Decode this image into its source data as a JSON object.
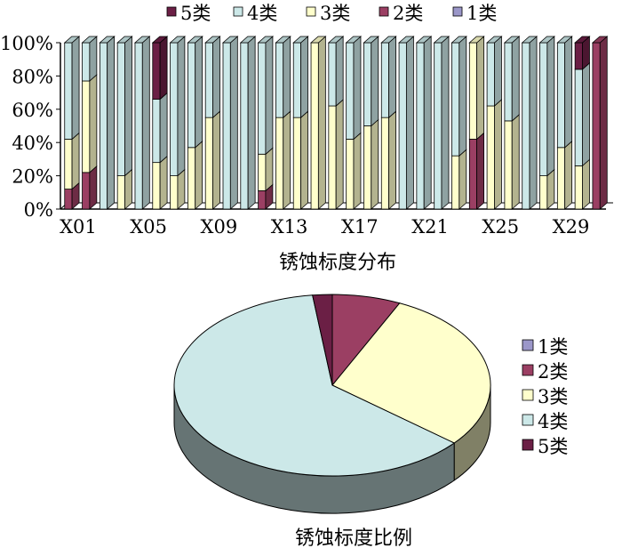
{
  "chart_data": [
    {
      "type": "bar",
      "subtype": "100% stacked 3D column",
      "xlabel": "锈蚀标度分布",
      "ylabel": "",
      "ylim": [
        0,
        100
      ],
      "y_ticks": [
        "0%",
        "20%",
        "40%",
        "60%",
        "80%",
        "100%"
      ],
      "legend_position": "top",
      "legend_order": [
        "5类",
        "4类",
        "3类",
        "2类",
        "1类"
      ],
      "categories": [
        "X01",
        "X02",
        "X03",
        "X04",
        "X05",
        "X06",
        "X07",
        "X08",
        "X09",
        "X10",
        "X11",
        "X12",
        "X13",
        "X14",
        "X15",
        "X16",
        "X17",
        "X18",
        "X19",
        "X20",
        "X21",
        "X22",
        "X23",
        "X24",
        "X25",
        "X26",
        "X27",
        "X28",
        "X29",
        "X30",
        "X31"
      ],
      "x_tick_labels": [
        "X01",
        "X05",
        "X09",
        "X13",
        "X17",
        "X21",
        "X25",
        "X29"
      ],
      "series": [
        {
          "name": "1类",
          "color": "#9b97c9",
          "values": [
            0,
            0,
            0,
            0,
            0,
            0,
            0,
            0,
            0,
            0,
            0,
            0,
            0,
            0,
            0,
            0,
            0,
            0,
            0,
            0,
            0,
            0,
            0,
            0,
            0,
            0,
            0,
            0,
            0,
            0,
            0
          ]
        },
        {
          "name": "2类",
          "color": "#9b3f63",
          "values": [
            12,
            22,
            0,
            0,
            0,
            0,
            0,
            0,
            0,
            0,
            0,
            11,
            0,
            0,
            0,
            0,
            0,
            0,
            0,
            0,
            0,
            0,
            0,
            42,
            0,
            0,
            0,
            0,
            0,
            0,
            100
          ]
        },
        {
          "name": "3类",
          "color": "#ffffcc",
          "values": [
            30,
            55,
            0,
            20,
            0,
            28,
            20,
            37,
            55,
            0,
            0,
            22,
            55,
            55,
            100,
            62,
            42,
            50,
            55,
            0,
            0,
            0,
            32,
            58,
            62,
            53,
            0,
            20,
            37,
            26,
            0
          ]
        },
        {
          "name": "4类",
          "color": "#cce8e8",
          "values": [
            58,
            23,
            100,
            80,
            100,
            38,
            80,
            63,
            45,
            100,
            100,
            67,
            45,
            45,
            0,
            38,
            58,
            50,
            45,
            100,
            100,
            100,
            68,
            0,
            38,
            47,
            100,
            80,
            63,
            58,
            0
          ]
        },
        {
          "name": "5类",
          "color": "#6b1f45",
          "values": [
            0,
            0,
            0,
            0,
            0,
            34,
            0,
            0,
            0,
            0,
            0,
            0,
            0,
            0,
            0,
            0,
            0,
            0,
            0,
            0,
            0,
            0,
            0,
            0,
            0,
            0,
            0,
            0,
            0,
            16,
            0
          ]
        }
      ]
    },
    {
      "type": "pie",
      "subtype": "3D pie",
      "title": "锈蚀标度比例",
      "legend_position": "right",
      "slices": [
        {
          "name": "1类",
          "value": 0,
          "color": "#9b97c9"
        },
        {
          "name": "2类",
          "value": 7,
          "color": "#9b3f63"
        },
        {
          "name": "3类",
          "value": 29,
          "color": "#ffffcc"
        },
        {
          "name": "4类",
          "value": 62,
          "color": "#cce8e8"
        },
        {
          "name": "5类",
          "value": 2,
          "color": "#6b1f45"
        }
      ]
    }
  ]
}
